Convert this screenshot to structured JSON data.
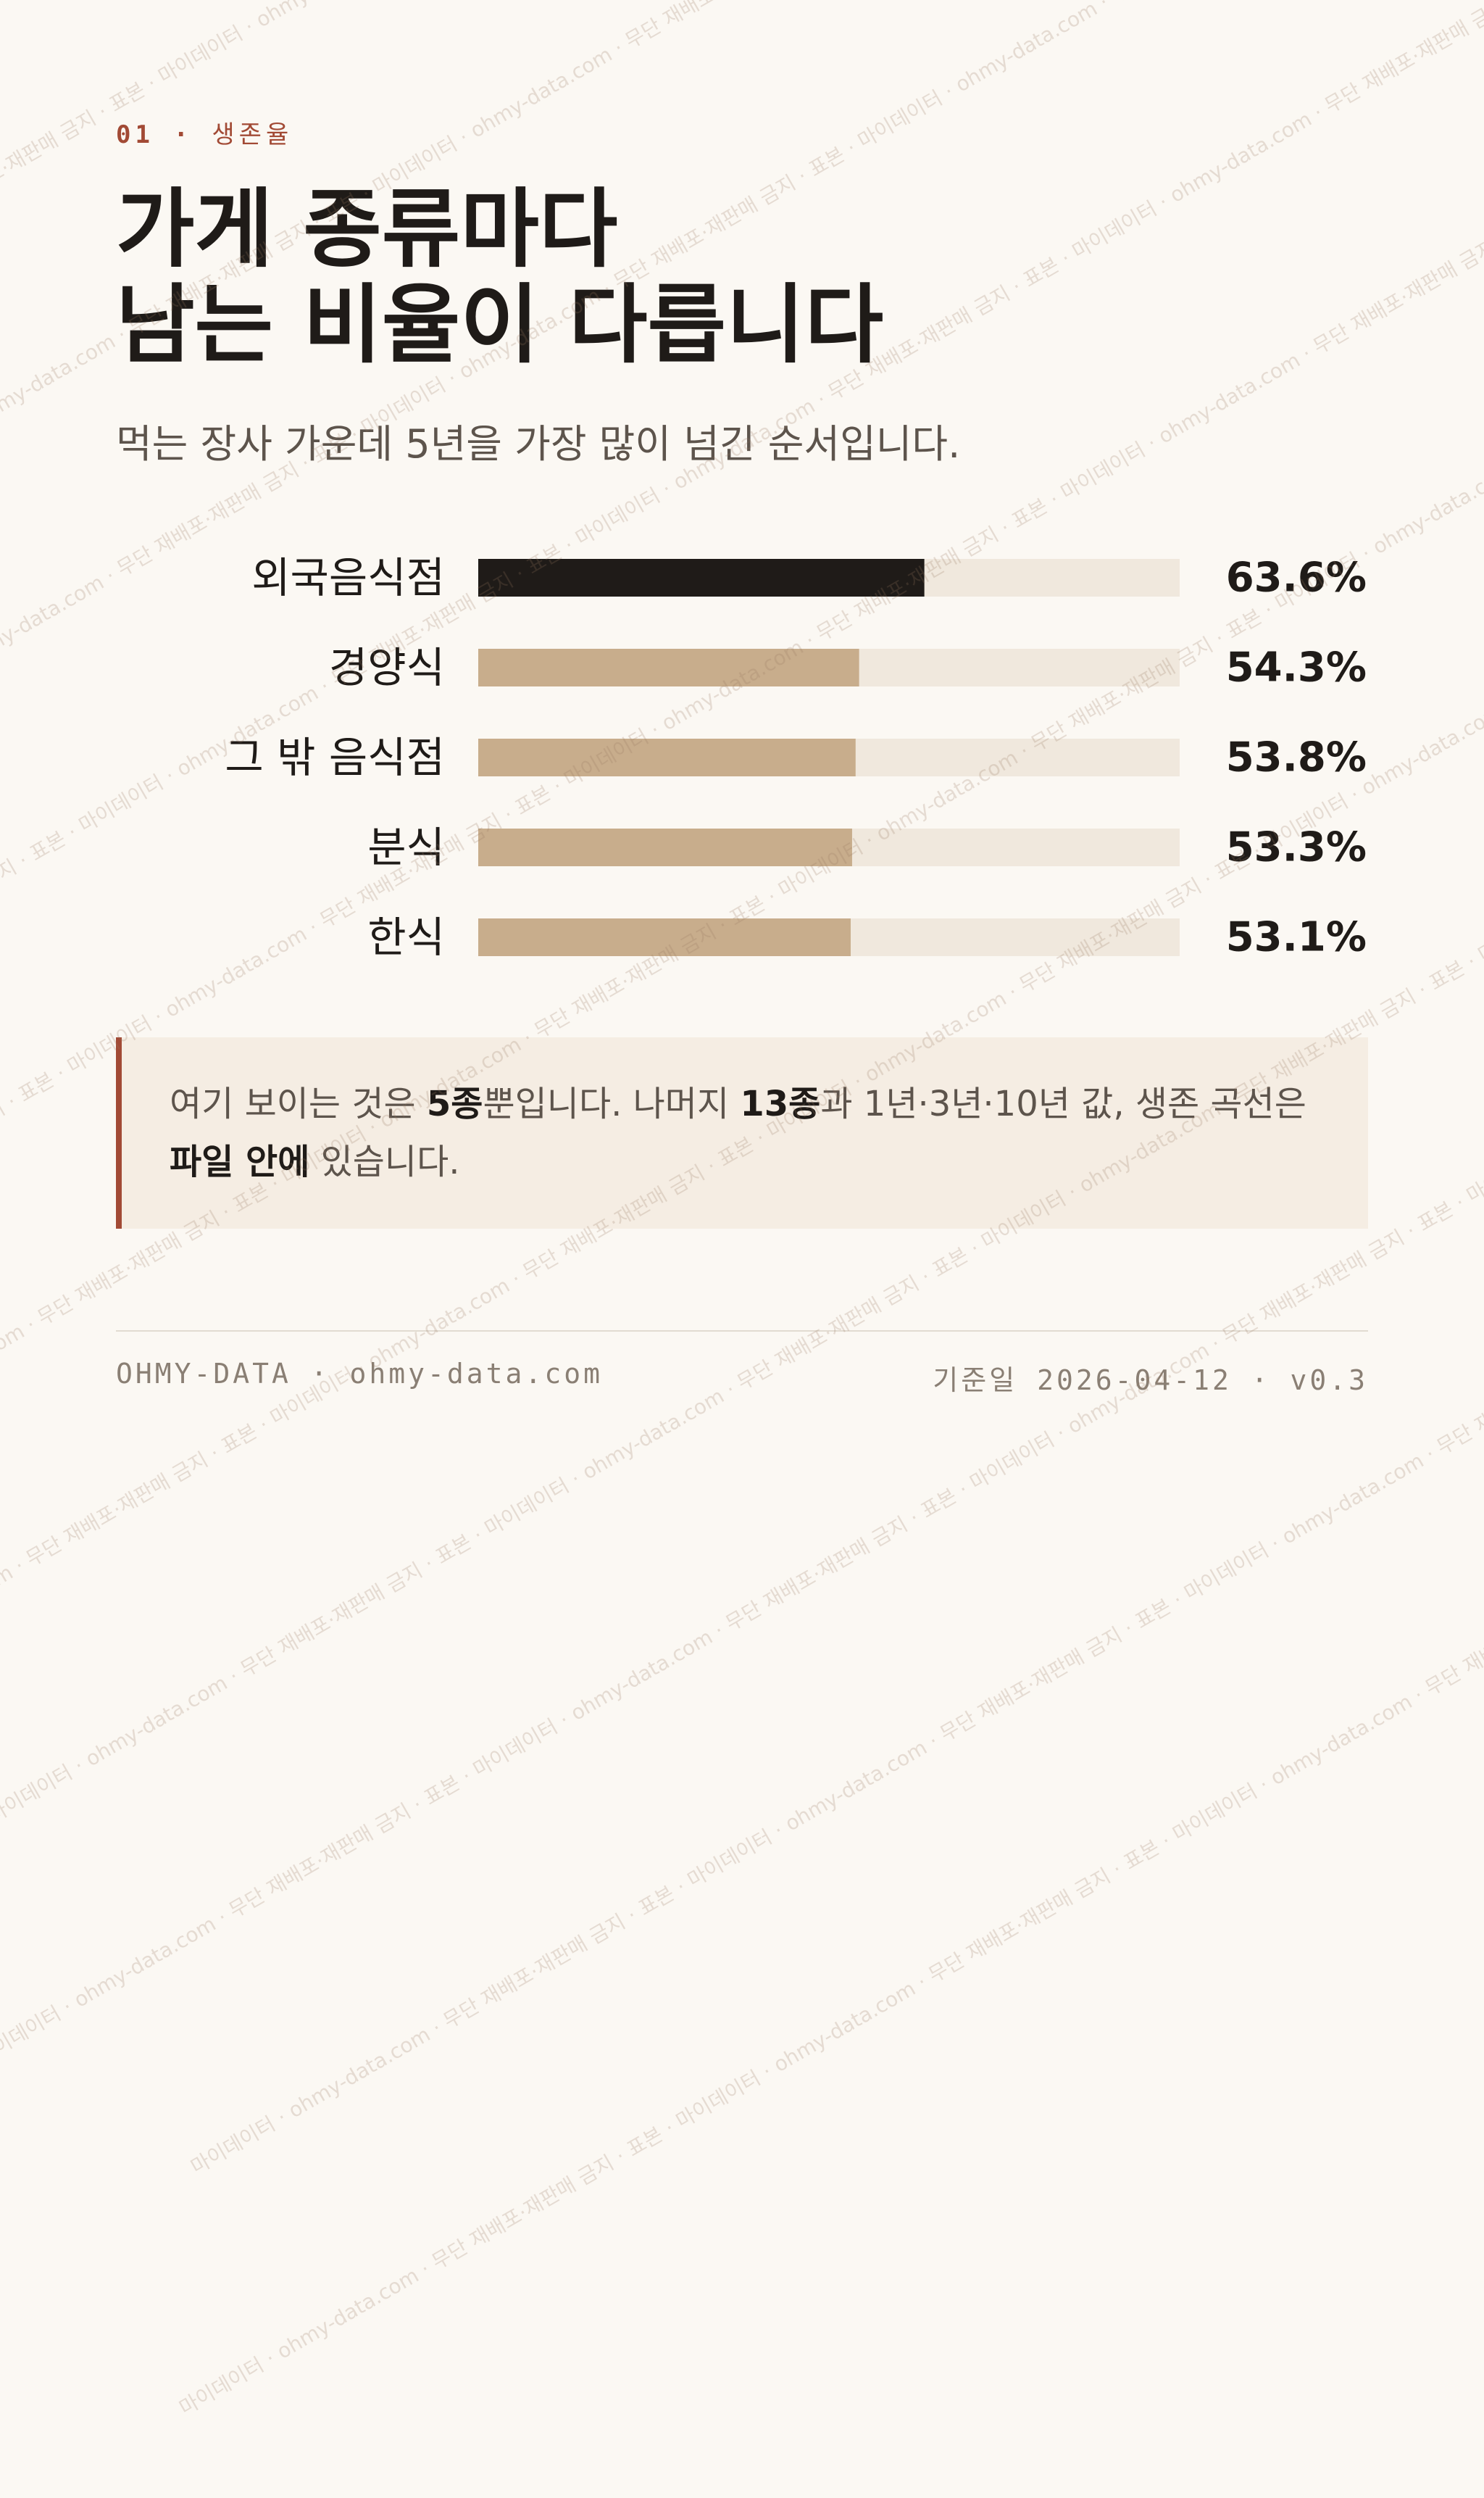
{
  "eyebrow": {
    "number": "01",
    "separator": "·",
    "label": "생존율"
  },
  "title": {
    "line1": "가게 종류마다",
    "line2": "남는 비율이 다릅니다"
  },
  "subtitle": "먹는 장사 가운데 5년을 가장 많이 넘긴 순서입니다.",
  "colors": {
    "highlight": "#1f1b18",
    "bar": "#c8ad8c",
    "track": "#f0e8dd",
    "accent": "#a24a35"
  },
  "chart_data": {
    "type": "bar",
    "orientation": "horizontal",
    "categories": [
      "외국음식점",
      "경양식",
      "그 밖 음식점",
      "분식",
      "한식"
    ],
    "values": [
      63.6,
      54.3,
      53.8,
      53.3,
      53.1
    ],
    "value_labels": [
      "63.6%",
      "54.3%",
      "53.8%",
      "53.3%",
      "53.1%"
    ],
    "highlight_index": 0,
    "xlim": [
      0,
      100
    ],
    "grid": false,
    "legend": "none"
  },
  "note": {
    "part1": "여기 보이는 것은 ",
    "bold1": "5종",
    "part2": "뿐입니다. 나머지 ",
    "bold2": "13종",
    "part3": "과 1년·3년·10년 값, 생존 곡선은 ",
    "bold3": "파일 안에",
    "part4": " 있습니다."
  },
  "footer": {
    "left": "OHMY-DATA · ohmy-data.com",
    "date_label": "기준일",
    "date_value": "2026-04-12 · v0.3"
  },
  "watermark": "마이데이터 · ohmy-data.com · 무단 재배포·재판매 금지 · 표본"
}
